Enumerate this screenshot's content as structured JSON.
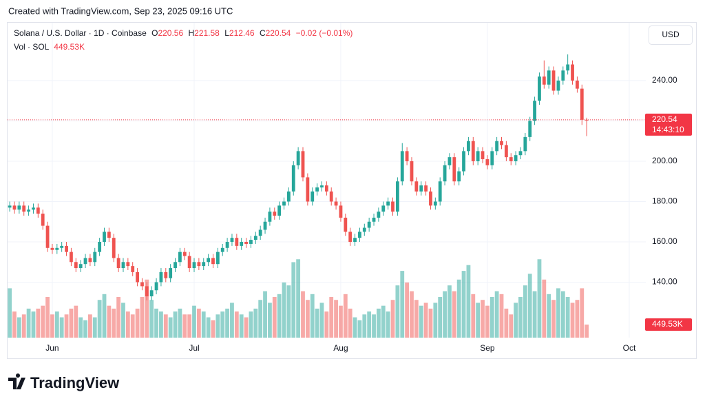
{
  "header": {
    "created": "Created with TradingView.com, Sep 23, 2025 09:16 UTC"
  },
  "footer": {
    "logo": "TradingView"
  },
  "chart_data": {
    "type": "candlestick",
    "title": "Solana / U.S. Dollar · 1D · Coinbase",
    "legend_letters": {
      "open": "O",
      "high": "H",
      "low": "L",
      "close": "C"
    },
    "change": "−0.02 (−0.01%)",
    "currency": "USD",
    "countdown": "14:43:10",
    "up_color": "#26a69a",
    "down_color": "#ef5350",
    "xlim": [
      -0.6,
      134.5
    ],
    "xticks": [
      {
        "value": 9,
        "label": "Jun"
      },
      {
        "value": 39,
        "label": "Jul"
      },
      {
        "value": 70,
        "label": "Aug"
      },
      {
        "value": 101,
        "label": "Sep"
      },
      {
        "value": 131,
        "label": "Oct"
      }
    ],
    "ylim": [
      112.5,
      268
    ],
    "yticks": [
      {
        "value": 140,
        "label": "140.00"
      },
      {
        "value": 160,
        "label": "160.00"
      },
      {
        "value": 180,
        "label": "180.00"
      },
      {
        "value": 200,
        "label": "200.00"
      },
      {
        "value": 220,
        "label": "220.00"
      },
      {
        "value": 240,
        "label": "240.00"
      }
    ],
    "grid": true,
    "open": [
      177,
      178,
      176,
      178,
      175,
      176,
      177,
      174,
      168,
      157,
      156,
      157,
      158,
      155,
      150,
      147,
      149,
      152,
      150,
      155,
      160,
      165,
      162,
      152,
      147,
      150,
      148,
      145,
      140,
      138,
      133,
      136,
      140,
      145,
      142,
      147,
      150,
      155,
      153,
      147,
      150,
      148,
      150,
      152,
      149,
      155,
      157,
      160,
      162,
      158,
      160,
      159,
      161,
      163,
      166,
      170,
      175,
      173,
      178,
      180,
      185,
      198,
      205,
      192,
      180,
      185,
      187,
      188,
      185,
      180,
      178,
      172,
      165,
      160,
      162,
      165,
      167,
      170,
      172,
      175,
      178,
      180,
      175,
      190,
      205,
      200,
      190,
      185,
      188,
      185,
      178,
      180,
      190,
      198,
      202,
      190,
      195,
      205,
      210,
      200,
      205,
      201,
      198,
      205,
      210,
      208,
      202,
      200,
      203,
      205,
      212,
      220,
      230,
      242,
      238,
      245,
      235,
      240,
      245,
      248,
      240,
      236,
      220.56
    ],
    "high": [
      180,
      180,
      180,
      180,
      178,
      179,
      179,
      176,
      170,
      159,
      159,
      160,
      160,
      157,
      152,
      151,
      154,
      154,
      157,
      162,
      167,
      167,
      164,
      154,
      152,
      152,
      150,
      147,
      142,
      140,
      138,
      142,
      147,
      147,
      149,
      152,
      157,
      157,
      155,
      152,
      152,
      152,
      154,
      154,
      157,
      159,
      162,
      164,
      164,
      162,
      162,
      163,
      165,
      168,
      172,
      177,
      177,
      180,
      182,
      187,
      200,
      207,
      207,
      194,
      187,
      189,
      190,
      190,
      187,
      182,
      180,
      174,
      167,
      164,
      167,
      169,
      172,
      174,
      177,
      180,
      182,
      182,
      192,
      209,
      207,
      202,
      192,
      190,
      190,
      187,
      182,
      192,
      200,
      204,
      204,
      197,
      207,
      212,
      212,
      207,
      207,
      203,
      207,
      212,
      212,
      210,
      204,
      205,
      207,
      214,
      222,
      232,
      244,
      250,
      247,
      247,
      242,
      247,
      253,
      250,
      242,
      238,
      221.58
    ],
    "low": [
      175,
      174,
      174,
      173,
      173,
      174,
      172,
      166,
      155,
      154,
      154,
      155,
      153,
      148,
      145,
      145,
      147,
      148,
      148,
      153,
      158,
      160,
      150,
      145,
      145,
      146,
      143,
      138,
      136,
      131,
      131,
      134,
      138,
      140,
      140,
      145,
      148,
      151,
      145,
      145,
      146,
      146,
      148,
      147,
      147,
      153,
      155,
      158,
      156,
      156,
      157,
      157,
      159,
      161,
      164,
      168,
      171,
      171,
      176,
      178,
      183,
      196,
      190,
      178,
      178,
      183,
      185,
      183,
      178,
      176,
      170,
      163,
      158,
      158,
      160,
      163,
      165,
      168,
      170,
      173,
      176,
      173,
      173,
      188,
      198,
      188,
      183,
      183,
      183,
      176,
      176,
      178,
      188,
      196,
      188,
      188,
      193,
      203,
      198,
      198,
      199,
      196,
      196,
      203,
      206,
      200,
      198,
      198,
      201,
      203,
      210,
      218,
      228,
      236,
      236,
      233,
      233,
      238,
      243,
      238,
      234,
      218,
      212.46
    ],
    "close": [
      178,
      176,
      178,
      175,
      176,
      177,
      174,
      168,
      157,
      156,
      157,
      158,
      155,
      150,
      147,
      149,
      152,
      150,
      155,
      160,
      165,
      162,
      152,
      147,
      150,
      148,
      145,
      140,
      138,
      133,
      136,
      140,
      145,
      142,
      147,
      150,
      155,
      153,
      147,
      150,
      148,
      150,
      152,
      149,
      155,
      157,
      160,
      162,
      158,
      160,
      159,
      161,
      163,
      166,
      170,
      175,
      173,
      178,
      180,
      185,
      198,
      205,
      192,
      180,
      185,
      187,
      188,
      185,
      180,
      178,
      172,
      165,
      160,
      162,
      165,
      167,
      170,
      172,
      175,
      178,
      180,
      175,
      190,
      205,
      200,
      190,
      185,
      188,
      185,
      178,
      180,
      190,
      198,
      202,
      190,
      195,
      205,
      210,
      200,
      205,
      201,
      198,
      205,
      210,
      208,
      202,
      200,
      203,
      205,
      212,
      220,
      230,
      242,
      238,
      245,
      235,
      240,
      245,
      248,
      240,
      236,
      220.56,
      220.54
    ],
    "volume": {
      "name": "Vol · SOL",
      "last_value_label": "449.53K",
      "y2lim": [
        0,
        10800
      ],
      "values": [
        1700,
        900,
        700,
        800,
        1000,
        900,
        1000,
        1100,
        1400,
        800,
        900,
        700,
        800,
        1000,
        1100,
        700,
        600,
        800,
        700,
        1300,
        1500,
        1100,
        1000,
        1400,
        1200,
        900,
        800,
        1000,
        1400,
        2000,
        1300,
        1000,
        900,
        800,
        700,
        900,
        1000,
        800,
        800,
        1100,
        1000,
        900,
        700,
        600,
        800,
        900,
        1000,
        1200,
        900,
        800,
        700,
        900,
        1000,
        1300,
        1600,
        1200,
        1400,
        1500,
        1900,
        1800,
        2600,
        2700,
        1600,
        1300,
        1500,
        1000,
        1200,
        900,
        1400,
        1300,
        1100,
        1500,
        1000,
        700,
        600,
        800,
        900,
        800,
        1000,
        1100,
        900,
        1300,
        1800,
        2300,
        1900,
        1600,
        1300,
        1100,
        1200,
        1000,
        1200,
        1400,
        1600,
        1800,
        1600,
        2000,
        2300,
        2500,
        1500,
        1200,
        1300,
        1100,
        1400,
        1600,
        1500,
        1000,
        800,
        1200,
        1400,
        1800,
        2200,
        1600,
        2700,
        2000,
        1500,
        1300,
        1700,
        1600,
        1400,
        1200,
        1300,
        1700,
        449.53
      ]
    }
  }
}
